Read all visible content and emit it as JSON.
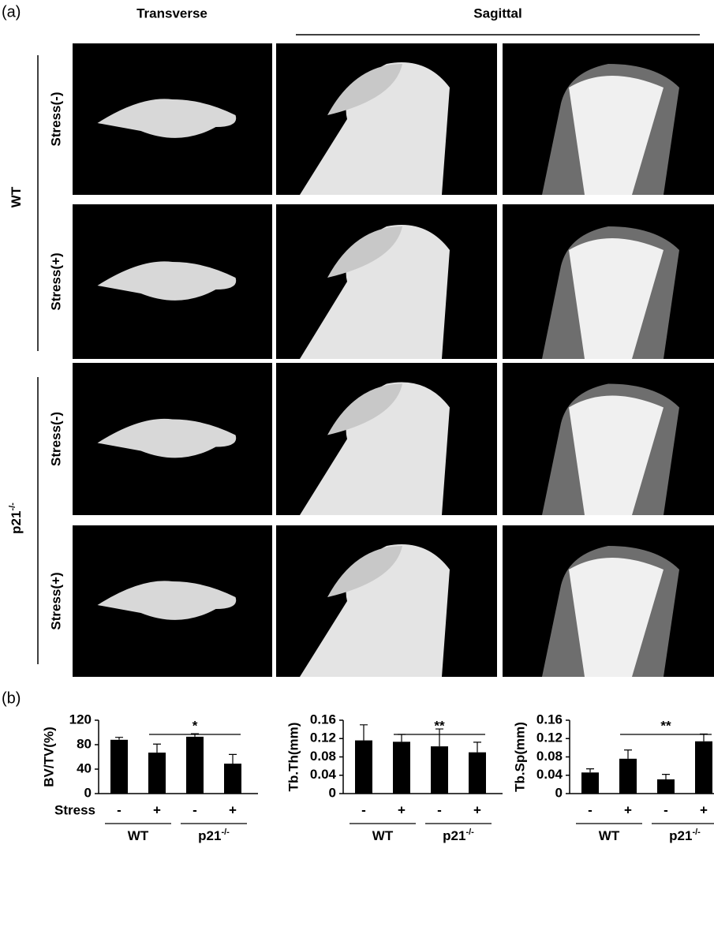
{
  "panel_a": {
    "label": "(a)",
    "views": [
      "Transverse",
      "Sagittal"
    ],
    "genotypes": [
      {
        "name": "WT"
      },
      {
        "name": "p21",
        "superscript": "-/-"
      }
    ],
    "conditions": [
      "Stress(-)",
      "Stress(+)"
    ]
  },
  "panel_b_label": "(b)",
  "chart_data": [
    {
      "type": "bar",
      "ylabel": "BV/TV(%)",
      "x_row_label": "Stress",
      "categories": [
        "-",
        "+",
        "-",
        "+"
      ],
      "groups": [
        {
          "name": "WT"
        },
        {
          "name": "p21",
          "superscript": "-/-"
        }
      ],
      "values": [
        88,
        67,
        93,
        49
      ],
      "errors": [
        4,
        14,
        5,
        15
      ],
      "color": "#000000",
      "ylim": [
        0,
        120
      ],
      "yticks": [
        0,
        40,
        80,
        120
      ],
      "significance": "*"
    },
    {
      "type": "bar",
      "ylabel": "Tb.Th(mm)",
      "categories": [
        "-",
        "+",
        "-",
        "+"
      ],
      "groups": [
        {
          "name": "WT"
        },
        {
          "name": "p21",
          "superscript": "-/-"
        }
      ],
      "values": [
        0.116,
        0.113,
        0.103,
        0.09
      ],
      "errors": [
        0.034,
        0.016,
        0.038,
        0.022
      ],
      "color": "#000000",
      "ylim": [
        0,
        0.16
      ],
      "yticks": [
        0,
        0.04,
        0.08,
        0.12,
        0.16
      ],
      "significance": "**"
    },
    {
      "type": "bar",
      "ylabel": "Tb.Sp(mm)",
      "categories": [
        "-",
        "+",
        "-",
        "+"
      ],
      "groups": [
        {
          "name": "WT"
        },
        {
          "name": "p21",
          "superscript": "-/-"
        }
      ],
      "values": [
        0.046,
        0.076,
        0.031,
        0.114
      ],
      "errors": [
        0.008,
        0.019,
        0.011,
        0.016
      ],
      "color": "#000000",
      "ylim": [
        0,
        0.16
      ],
      "yticks": [
        0,
        0.04,
        0.08,
        0.12,
        0.16
      ],
      "significance": "**"
    }
  ]
}
